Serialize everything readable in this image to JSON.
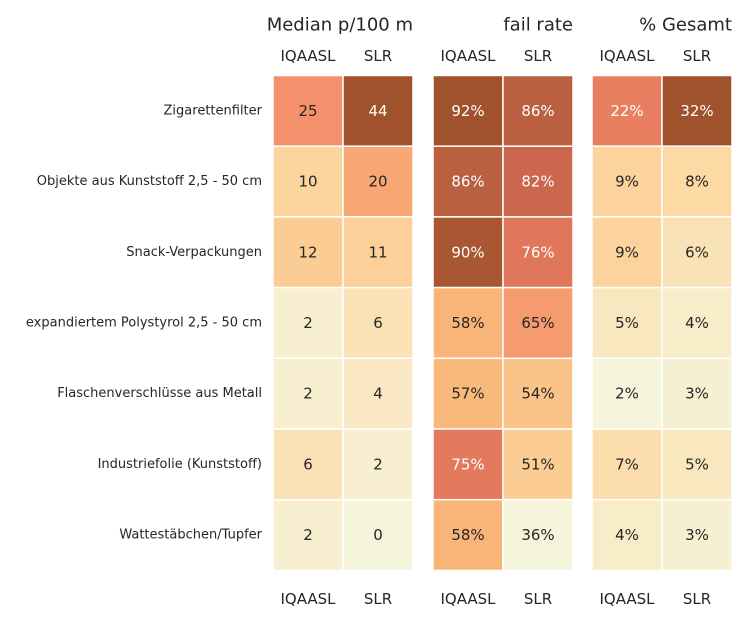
{
  "chart_data": {
    "type": "heatmap",
    "row_labels": [
      "Zigarettenfilter",
      "Objekte aus Kunststoff 2,5 - 50 cm",
      "Snack-Verpackungen",
      "expandiertem Polystyrol 2,5 - 50 cm",
      "Flaschenverschlüsse aus Metall",
      "Industriefolie (Kunststoff)",
      "Wattestäbchen/Tupfer"
    ],
    "panels": [
      {
        "title": "Median p/100 m",
        "columns": [
          "IQAASL",
          "SLR"
        ],
        "values": [
          [
            25,
            44
          ],
          [
            10,
            20
          ],
          [
            12,
            11
          ],
          [
            2,
            6
          ],
          [
            2,
            4
          ],
          [
            6,
            2
          ],
          [
            2,
            0
          ]
        ],
        "labels": [
          [
            "25",
            "44"
          ],
          [
            "10",
            "20"
          ],
          [
            "12",
            "11"
          ],
          [
            "2",
            "6"
          ],
          [
            "2",
            "4"
          ],
          [
            "6",
            "2"
          ],
          [
            "2",
            "0"
          ]
        ]
      },
      {
        "title": "fail rate",
        "columns": [
          "IQAASL",
          "SLR"
        ],
        "values": [
          [
            92,
            86
          ],
          [
            86,
            82
          ],
          [
            90,
            76
          ],
          [
            58,
            65
          ],
          [
            57,
            54
          ],
          [
            75,
            51
          ],
          [
            58,
            36
          ]
        ],
        "labels": [
          [
            "92%",
            "86%"
          ],
          [
            "86%",
            "82%"
          ],
          [
            "90%",
            "76%"
          ],
          [
            "58%",
            "65%"
          ],
          [
            "57%",
            "54%"
          ],
          [
            "75%",
            "51%"
          ],
          [
            "58%",
            "36%"
          ]
        ]
      },
      {
        "title": "% Gesamt",
        "columns": [
          "IQAASL",
          "SLR"
        ],
        "values": [
          [
            22,
            32
          ],
          [
            9,
            8
          ],
          [
            9,
            6
          ],
          [
            5,
            4
          ],
          [
            2,
            3
          ],
          [
            7,
            5
          ],
          [
            4,
            3
          ]
        ],
        "labels": [
          [
            "22%",
            "32%"
          ],
          [
            "9%",
            "8%"
          ],
          [
            "9%",
            "6%"
          ],
          [
            "5%",
            "4%"
          ],
          [
            "2%",
            "3%"
          ],
          [
            "7%",
            "5%"
          ],
          [
            "4%",
            "3%"
          ]
        ]
      }
    ],
    "colormap": [
      "#f5f5dc",
      "#fdd9a4",
      "#f8b475",
      "#f5896a",
      "#d06a50",
      "#a0522d"
    ],
    "light_text_color": "#ffffff",
    "dark_text_color": "#262626",
    "grid": false,
    "colorbar": false
  }
}
